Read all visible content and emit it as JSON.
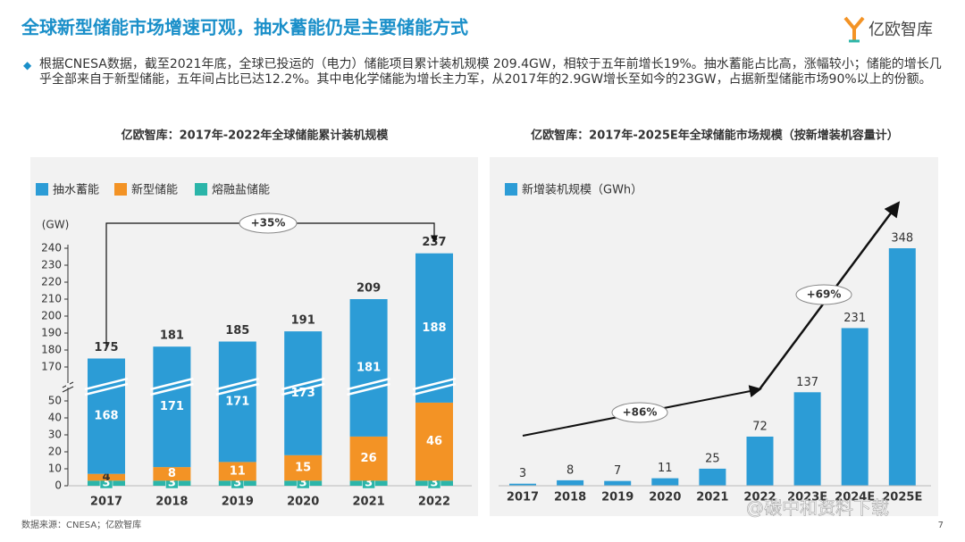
{
  "title": "全球新型储能市场增速可观，抽水蓄能仍是主要储能方式",
  "logo": "亿欧智库",
  "bullet": "根据CNESA数据，截至2021年底，全球已投运的（电力）储能项目累计装机规模 209.4GW，相较于五年前增长19%。抽水蓄能占比高，涨幅较小；储能的增长几乎全部来自于新型储能，五年间占比已达12.2%。其中电化学储能为增长主力军，从2017年的2.9GW增长至如今的23GW，占据新型储能市场90%以上的份额。",
  "source": "数据来源：CNESA；亿欧智库",
  "page": "7",
  "watermark": "@碳中和资料下载",
  "chart_data": [
    {
      "type": "bar",
      "stacked": true,
      "title": "亿欧智库：2017年-2022年全球储能累计装机规模",
      "y_unit": "(GW)",
      "categories": [
        "2017",
        "2018",
        "2019",
        "2020",
        "2021",
        "2022"
      ],
      "series": [
        {
          "name": "抽水蓄能",
          "color": "#2c9cd6",
          "values": [
            168,
            171,
            171,
            173,
            181,
            188
          ]
        },
        {
          "name": "新型储能",
          "color": "#f39325",
          "values": [
            4,
            8,
            11,
            15,
            26,
            46
          ]
        },
        {
          "name": "熔融盐储能",
          "color": "#2bb5a9",
          "values": [
            3,
            3,
            3,
            3,
            3,
            3
          ]
        }
      ],
      "totals": [
        175,
        181,
        185,
        191,
        209,
        237
      ],
      "ylim": [
        0,
        240
      ],
      "axis_break": [
        60,
        160
      ],
      "yticks": [
        0,
        10,
        20,
        30,
        40,
        50,
        170,
        180,
        190,
        200,
        210,
        220,
        230,
        240
      ],
      "annotation": "+35%"
    },
    {
      "type": "bar",
      "title": "亿欧智库：2017年-2025E年全球储能市场规模（按新增装机容量计）",
      "categories": [
        "2017",
        "2018",
        "2019",
        "2020",
        "2021",
        "2022",
        "2023E",
        "2024E",
        "2025E"
      ],
      "series": [
        {
          "name": "新增装机规模（GWh）",
          "color": "#2c9cd6",
          "values": [
            3,
            8,
            7,
            11,
            25,
            72,
            137,
            231,
            348
          ]
        }
      ],
      "ylim": [
        0,
        350
      ],
      "annotations": [
        "+86%",
        "+69%"
      ]
    }
  ]
}
